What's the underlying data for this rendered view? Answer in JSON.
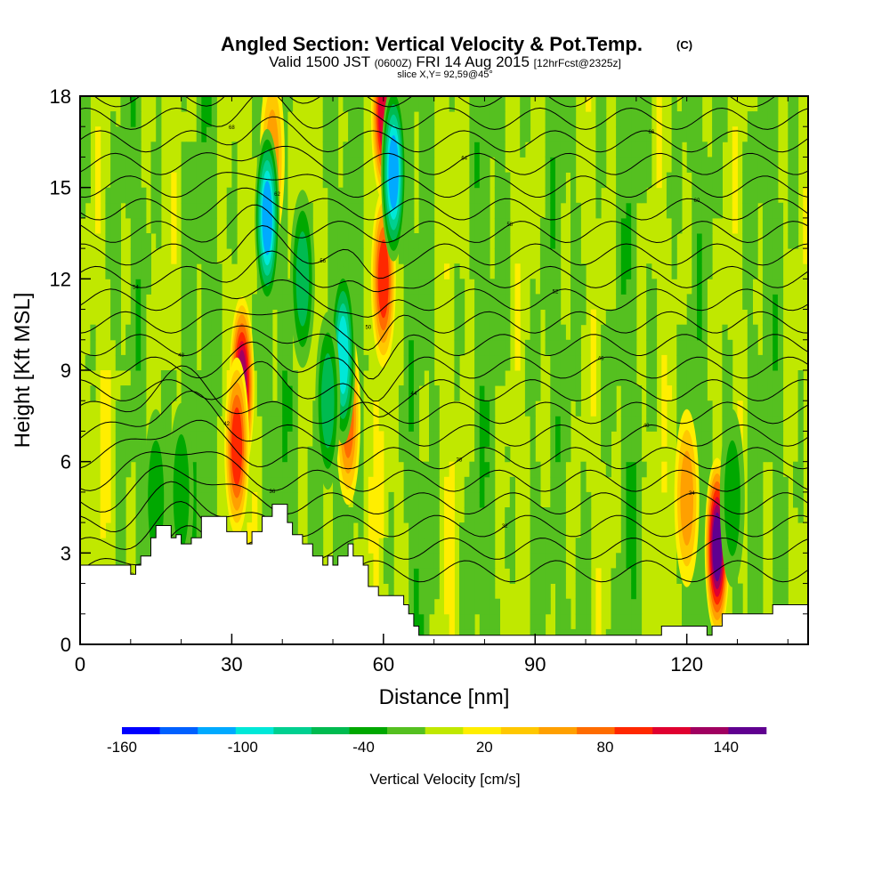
{
  "chart_data": {
    "type": "heatmap",
    "title": "Angled Section: Vertical Velocity & Pot.Temp.",
    "title_unit": "(C)",
    "subtitle_main": "Valid 1500 JST",
    "subtitle_utc": "(0600Z)",
    "subtitle_date": "FRI 14 Aug 2015",
    "subtitle_fcst": "[12hrFcst@2325z]",
    "slice": "slice X,Y= 92,59@45°",
    "xlabel": "Distance [nm]",
    "ylabel": "Height [Kft MSL]",
    "xlim": [
      0,
      144
    ],
    "ylim": [
      0,
      18
    ],
    "x_ticks": [
      "0",
      "30",
      "60",
      "90",
      "120"
    ],
    "x_tick_values": [
      0,
      30,
      60,
      90,
      120
    ],
    "y_ticks": [
      "0",
      "3",
      "6",
      "9",
      "12",
      "15",
      "18"
    ],
    "y_tick_values": [
      0,
      3,
      6,
      9,
      12,
      15,
      18
    ],
    "colorbar": {
      "label": "Vertical Velocity [cm/s]",
      "tick_labels": [
        "-160",
        "-100",
        "-40",
        "20",
        "80",
        "140"
      ],
      "tick_values": [
        -160,
        -100,
        -40,
        20,
        80,
        140
      ],
      "range": [
        -160,
        160
      ],
      "step": 20,
      "colors": [
        "#0000ff",
        "#0060ff",
        "#00aaff",
        "#00e8d8",
        "#00d090",
        "#00bb50",
        "#00a800",
        "#55c020",
        "#c0e800",
        "#ffee00",
        "#ffc800",
        "#ffa000",
        "#ff6c00",
        "#ff2800",
        "#e00030",
        "#a00060",
        "#600090"
      ]
    },
    "terrain_kft": [
      [
        0,
        2.6
      ],
      [
        10,
        2.6
      ],
      [
        10,
        2.3
      ],
      [
        11,
        2.3
      ],
      [
        11,
        2.6
      ],
      [
        12,
        2.6
      ],
      [
        12,
        2.9
      ],
      [
        14,
        2.9
      ],
      [
        14,
        3.5
      ],
      [
        15,
        3.5
      ],
      [
        15,
        3.9
      ],
      [
        18,
        3.9
      ],
      [
        18,
        3.5
      ],
      [
        19,
        3.5
      ],
      [
        19,
        3.6
      ],
      [
        20,
        3.6
      ],
      [
        20,
        3.3
      ],
      [
        22,
        3.3
      ],
      [
        22,
        3.5
      ],
      [
        24,
        3.5
      ],
      [
        24,
        4.2
      ],
      [
        29,
        4.2
      ],
      [
        29,
        3.7
      ],
      [
        33,
        3.7
      ],
      [
        33,
        3.3
      ],
      [
        34,
        3.3
      ],
      [
        34,
        3.7
      ],
      [
        36,
        3.7
      ],
      [
        36,
        4.2
      ],
      [
        38,
        4.2
      ],
      [
        38,
        4.6
      ],
      [
        41,
        4.6
      ],
      [
        41,
        4.0
      ],
      [
        42,
        4.0
      ],
      [
        42,
        3.6
      ],
      [
        44,
        3.6
      ],
      [
        44,
        3.3
      ],
      [
        46,
        3.3
      ],
      [
        46,
        2.9
      ],
      [
        48,
        2.9
      ],
      [
        48,
        2.6
      ],
      [
        49,
        2.6
      ],
      [
        49,
        2.9
      ],
      [
        50,
        2.9
      ],
      [
        50,
        2.6
      ],
      [
        51,
        2.6
      ],
      [
        51,
        2.9
      ],
      [
        53,
        2.9
      ],
      [
        53,
        3.3
      ],
      [
        54,
        3.3
      ],
      [
        54,
        2.9
      ],
      [
        56,
        2.9
      ],
      [
        56,
        2.6
      ],
      [
        57,
        2.6
      ],
      [
        57,
        1.9
      ],
      [
        59,
        1.9
      ],
      [
        59,
        1.6
      ],
      [
        64,
        1.6
      ],
      [
        64,
        1.3
      ],
      [
        65,
        1.3
      ],
      [
        65,
        1.0
      ],
      [
        66,
        1.0
      ],
      [
        66,
        0.6
      ],
      [
        67,
        0.6
      ],
      [
        67,
        0.3
      ],
      [
        115,
        0.3
      ],
      [
        115,
        0.6
      ],
      [
        124,
        0.6
      ],
      [
        124,
        0.3
      ],
      [
        125,
        0.3
      ],
      [
        125,
        0.6
      ],
      [
        127,
        0.6
      ],
      [
        127,
        1.0
      ],
      [
        137,
        1.0
      ],
      [
        137,
        1.3
      ],
      [
        144,
        1.3
      ]
    ],
    "isentropes_c": [
      28,
      30,
      32,
      34,
      36,
      38,
      40,
      42,
      44,
      46,
      48,
      50,
      52,
      54,
      56,
      58,
      60,
      62,
      64,
      66,
      68,
      70
    ],
    "updraft_cells": [
      {
        "x": 32,
        "y": 8.5,
        "w": 130
      },
      {
        "x": 31,
        "y": 6.5,
        "w": 100
      },
      {
        "x": 60,
        "y": 12,
        "w": 100
      },
      {
        "x": 60,
        "y": 17.5,
        "w": 120
      },
      {
        "x": 126,
        "y": 3.2,
        "w": 150
      },
      {
        "x": 120,
        "y": 4.8,
        "w": 60
      },
      {
        "x": 53,
        "y": 7.5,
        "w": 70
      },
      {
        "x": 38,
        "y": 16,
        "w": 50
      }
    ],
    "downdraft_cells": [
      {
        "x": 37,
        "y": 14,
        "w": -110
      },
      {
        "x": 62,
        "y": 15.5,
        "w": -110
      },
      {
        "x": 52,
        "y": 9.5,
        "w": -90
      },
      {
        "x": 49,
        "y": 8,
        "w": -45
      },
      {
        "x": 44,
        "y": 12,
        "w": -45
      },
      {
        "x": 20,
        "y": 5,
        "w": -40
      },
      {
        "x": 15,
        "y": 4.8,
        "w": -30
      },
      {
        "x": 129,
        "y": 4.8,
        "w": -40
      }
    ]
  }
}
